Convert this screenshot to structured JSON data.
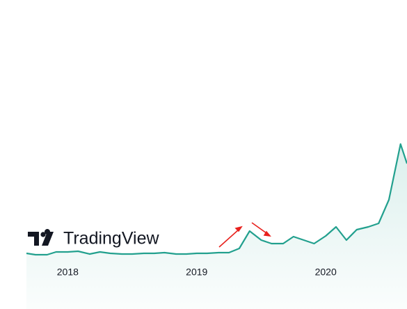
{
  "chart_data": {
    "type": "area-line",
    "watermark": "TradingView",
    "color": "#22a08e",
    "x": [
      2017.68,
      2017.75,
      2017.84,
      2017.91,
      2018.0,
      2018.08,
      2018.17,
      2018.25,
      2018.33,
      2018.42,
      2018.5,
      2018.59,
      2018.67,
      2018.75,
      2018.84,
      2018.92,
      2019.0,
      2019.08,
      2019.17,
      2019.25,
      2019.33,
      2019.41,
      2019.5,
      2019.58,
      2019.67,
      2019.75,
      2019.83,
      2019.91,
      2020.0,
      2020.08,
      2020.16,
      2020.24,
      2020.33,
      2020.41,
      2020.49,
      2020.58,
      2020.63
    ],
    "values": [
      3,
      2,
      2,
      4,
      4,
      4.5,
      2.5,
      4,
      3,
      2.5,
      2.5,
      3,
      3,
      3.5,
      2.5,
      2.5,
      3,
      3,
      3.5,
      3.5,
      6.5,
      19,
      12.5,
      10,
      10,
      15,
      12.5,
      10,
      15.5,
      22,
      12.5,
      20,
      22,
      24.5,
      41.5,
      81.5,
      67.5
    ],
    "xlim": [
      2017.68,
      2020.63
    ],
    "xticks": [
      2018,
      2019,
      2020
    ],
    "ylim": [
      0,
      100
    ]
  }
}
